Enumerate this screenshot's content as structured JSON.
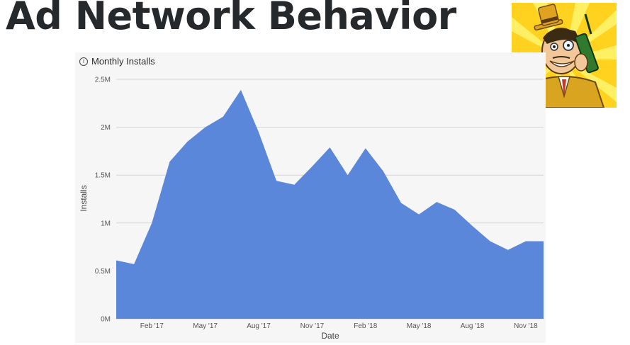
{
  "slide": {
    "title": "Ad Network Behavior"
  },
  "mascot": {
    "icon": "cartoon-businessman-with-phone-logo"
  },
  "chart": {
    "header_icon": "info-icon",
    "header_icon_glyph": "i",
    "title": "Monthly Installs"
  },
  "chart_data": {
    "type": "area",
    "title": "Monthly Installs",
    "xlabel": "Date",
    "ylabel": "Installs",
    "x": [
      "2016-12",
      "2017-01",
      "2017-02",
      "2017-03",
      "2017-04",
      "2017-05",
      "2017-06",
      "2017-07",
      "2017-08",
      "2017-09",
      "2017-10",
      "2017-11",
      "2017-12",
      "2018-01",
      "2018-02",
      "2018-03",
      "2018-04",
      "2018-05",
      "2018-06",
      "2018-07",
      "2018-08",
      "2018-09",
      "2018-10",
      "2018-11",
      "2018-12"
    ],
    "series": [
      {
        "values": [
          610000,
          570000,
          1000000,
          1640000,
          1850000,
          2000000,
          2110000,
          2390000,
          1950000,
          1440000,
          1400000,
          1590000,
          1790000,
          1500000,
          1780000,
          1540000,
          1210000,
          1090000,
          1220000,
          1140000,
          970000,
          810000,
          720000,
          810000,
          810000
        ]
      }
    ],
    "ylim": [
      0,
      2500000
    ],
    "yticks": [
      0,
      500000,
      1000000,
      1500000,
      2000000,
      2500000
    ],
    "ytick_labels": [
      "0M",
      "0.5M",
      "1M",
      "1.5M",
      "2M",
      "2.5M"
    ],
    "xticks": [
      "2017-02",
      "2017-05",
      "2017-08",
      "2017-11",
      "2018-02",
      "2018-05",
      "2018-08",
      "2018-11"
    ],
    "xtick_labels": [
      "Feb '17",
      "May '17",
      "Aug '17",
      "Nov '17",
      "Feb '18",
      "May '18",
      "Aug '18",
      "Nov '18"
    ],
    "grid": true,
    "fill_color": "#5b87da"
  }
}
